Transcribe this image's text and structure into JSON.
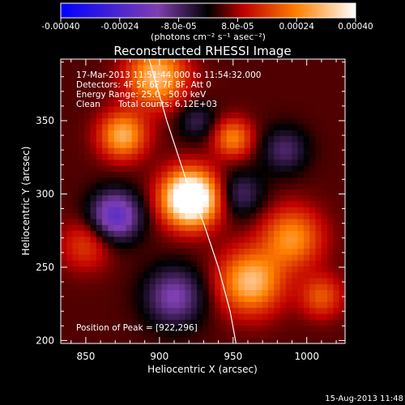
{
  "chart_data": {
    "type": "heatmap",
    "title": "Reconstructed RHESSI Image",
    "xlabel": "Heliocentric X (arcsec)",
    "ylabel": "Heliocentric Y (arcsec)",
    "xlim": [
      833,
      1026
    ],
    "ylim": [
      198,
      392
    ],
    "x_ticks": [
      850,
      900,
      950,
      1000
    ],
    "y_ticks": [
      200,
      250,
      300,
      350
    ],
    "colorbar": {
      "unit_label": "(photons cm⁻² s⁻¹ asec⁻²)",
      "range": [
        -0.0004,
        0.0004
      ],
      "tick_values": [
        -0.0004,
        -0.00024,
        -8e-05,
        8e-05,
        0.00024,
        0.0004
      ],
      "tick_labels": [
        "-0.00040",
        "-0.00024",
        "-8.0e-05",
        "8.0e-05",
        "0.00024",
        "0.00040"
      ]
    },
    "annotations": [
      "17-Mar-2013 11:51:44.000 to 11:54:32.000",
      "Detectors: 4F 5F 6F 7F 8F, Att 0",
      "Energy Range: 25.0 - 50.0 keV",
      "Clean",
      "Total counts: 6.12E+03"
    ],
    "peak_label": "Position of Peak = [922,296]",
    "peak": {
      "x": 922,
      "y": 296
    },
    "limb_curve": [
      [
        893,
        392
      ],
      [
        905,
        350
      ],
      [
        918,
        310
      ],
      [
        930,
        280
      ],
      [
        940,
        250
      ],
      [
        948,
        220
      ],
      [
        952,
        198
      ]
    ],
    "sources": [
      {
        "x": 921,
        "y": 297,
        "sigma": 13,
        "amp": 0.00052
      },
      {
        "x": 875,
        "y": 340,
        "sigma": 11,
        "amp": 0.00026
      },
      {
        "x": 898,
        "y": 380,
        "sigma": 14,
        "amp": 0.00028
      },
      {
        "x": 950,
        "y": 338,
        "sigma": 9,
        "amp": 0.0002
      },
      {
        "x": 962,
        "y": 240,
        "sigma": 15,
        "amp": 0.00028
      },
      {
        "x": 990,
        "y": 270,
        "sigma": 14,
        "amp": 0.00022
      },
      {
        "x": 1010,
        "y": 230,
        "sigma": 10,
        "amp": 0.00015
      },
      {
        "x": 850,
        "y": 265,
        "sigma": 12,
        "amp": 0.00012
      },
      {
        "x": 870,
        "y": 285,
        "sigma": 12,
        "amp": -0.00025
      },
      {
        "x": 910,
        "y": 230,
        "sigma": 14,
        "amp": -0.00018
      },
      {
        "x": 955,
        "y": 300,
        "sigma": 11,
        "amp": -0.00012
      },
      {
        "x": 985,
        "y": 330,
        "sigma": 11,
        "amp": -0.00012
      },
      {
        "x": 925,
        "y": 350,
        "sigma": 9,
        "amp": -0.0001
      }
    ]
  },
  "footer_timestamp": "15-Aug-2013 11:48"
}
